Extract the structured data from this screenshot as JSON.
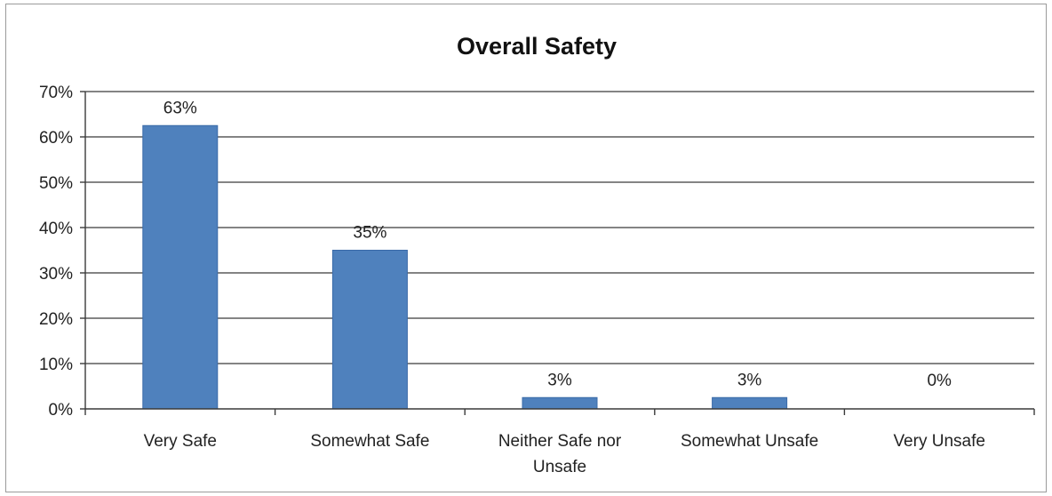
{
  "chart_data": {
    "type": "bar",
    "title": "Overall Safety",
    "categories": [
      [
        "Very Safe"
      ],
      [
        "Somewhat Safe"
      ],
      [
        "Neither Safe nor",
        "Unsafe"
      ],
      [
        "Somewhat Unsafe"
      ],
      [
        "Very Unsafe"
      ]
    ],
    "values": [
      62.5,
      35,
      2.5,
      2.5,
      0
    ],
    "data_labels": [
      "63%",
      "35%",
      "3%",
      "3%",
      "0%"
    ],
    "ylim": [
      0,
      70
    ],
    "yticks": [
      0,
      10,
      20,
      30,
      40,
      50,
      60,
      70
    ],
    "ytick_labels": [
      "0%",
      "10%",
      "20%",
      "30%",
      "40%",
      "50%",
      "60%",
      "70%"
    ],
    "xlabel": "",
    "ylabel": "",
    "grid": true,
    "legend": "none",
    "colors": {
      "bar": "#4f81bd",
      "bar_edge": "#3a6aa8",
      "grid": "#3a3a3a",
      "text": "#222222"
    }
  }
}
